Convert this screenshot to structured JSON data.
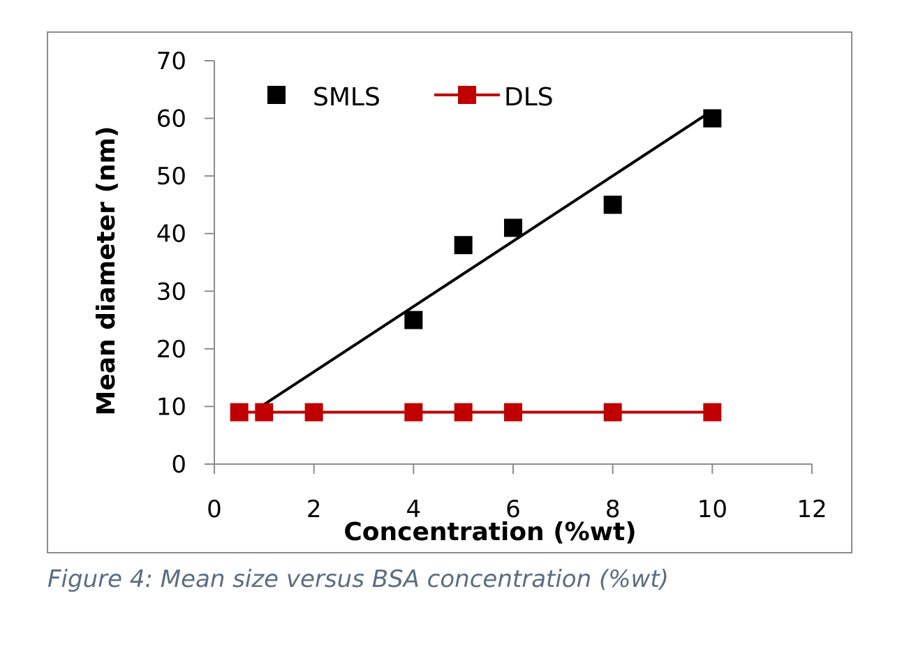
{
  "chart_data": {
    "type": "scatter",
    "title": "",
    "xlabel": "Concentration (%wt)",
    "ylabel": "Mean diameter (nm)",
    "xlim": [
      0,
      12
    ],
    "ylim": [
      0,
      70
    ],
    "x_ticks": [
      0,
      2,
      4,
      6,
      8,
      10,
      12
    ],
    "y_ticks": [
      0,
      10,
      20,
      30,
      40,
      50,
      60,
      70
    ],
    "grid": false,
    "legend_position": "top-left",
    "series": [
      {
        "name": "SMLS",
        "style": "markers",
        "marker": "square",
        "color": "#000000",
        "x": [
          4,
          5,
          6,
          8,
          10
        ],
        "y": [
          25,
          38,
          41,
          45,
          60
        ]
      },
      {
        "name": "DLS",
        "style": "line-markers",
        "marker": "square",
        "color": "#c00000",
        "x": [
          0.5,
          1,
          2,
          4,
          5,
          6,
          8,
          10
        ],
        "y": [
          9,
          9,
          9,
          9,
          9,
          9,
          9,
          9
        ]
      }
    ],
    "trendline": {
      "series": "SMLS",
      "type": "linear",
      "color": "#000000",
      "x_range": [
        0.85,
        9.85
      ],
      "y_range": [
        9.5,
        60.5
      ]
    }
  },
  "caption": "Figure 4: Mean size versus BSA concentration (%wt)"
}
